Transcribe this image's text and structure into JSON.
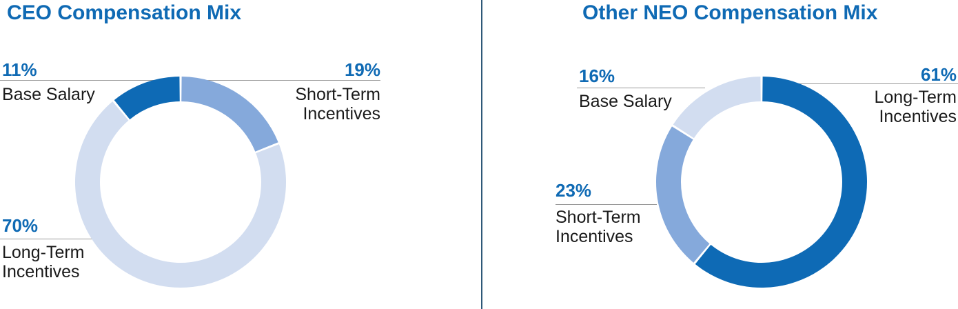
{
  "titles": {
    "ceo": "CEO Compensation Mix",
    "neo": "Other NEO Compensation Mix"
  },
  "palette": {
    "title_blue": "#0f6ab4",
    "dark_blue": "#0e6ab5",
    "medium_blue": "#85a9db",
    "light_blue": "#d2ddf0",
    "divider_blue": "#2e5878",
    "leader_line_gray": "#999999",
    "label_black": "#1a1a1a"
  },
  "chart_data": [
    {
      "type": "pie",
      "variant": "donut",
      "title": "CEO Compensation Mix",
      "start_angle": "top",
      "direction": "clockwise",
      "segments": [
        {
          "label": "Short-Term Incentives",
          "pct": 19,
          "color": "#85a9db"
        },
        {
          "label": "Long-Term Incentives",
          "pct": 70,
          "color": "#d2ddf0"
        },
        {
          "label": "Base Salary",
          "pct": 11,
          "color": "#0e6ab5"
        }
      ]
    },
    {
      "type": "pie",
      "variant": "donut",
      "title": "Other NEO Compensation Mix",
      "start_angle": "top",
      "direction": "clockwise",
      "segments": [
        {
          "label": "Long-Term Incentives",
          "pct": 61,
          "color": "#0e6ab5"
        },
        {
          "label": "Short-Term Incentives",
          "pct": 23,
          "color": "#85a9db"
        },
        {
          "label": "Base Salary",
          "pct": 16,
          "color": "#d2ddf0"
        }
      ]
    }
  ],
  "callouts": {
    "ceo_base": {
      "pct": "11%",
      "line1": "Base Salary"
    },
    "ceo_sti": {
      "pct": "19%",
      "line1": "Short-Term",
      "line2": "Incentives"
    },
    "ceo_lti": {
      "pct": "70%",
      "line1": "Long-Term",
      "line2": "Incentives"
    },
    "neo_base": {
      "pct": "16%",
      "line1": "Base Salary"
    },
    "neo_sti": {
      "pct": "23%",
      "line1": "Short-Term",
      "line2": "Incentives"
    },
    "neo_lti": {
      "pct": "61%",
      "line1": "Long-Term",
      "line2": "Incentives"
    }
  }
}
